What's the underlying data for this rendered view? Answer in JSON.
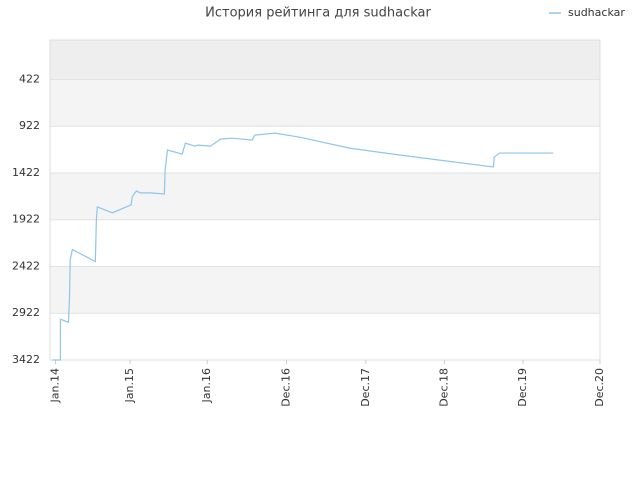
{
  "chart_data": {
    "type": "line",
    "title": "История рейтинга для sudhackar",
    "legend": "top-right",
    "grid": true,
    "xlim": [
      -0.07,
      7
    ],
    "xticks": [
      {
        "value": 0,
        "label": "Jan.14"
      },
      {
        "value": 0.96,
        "label": "Jan.15"
      },
      {
        "value": 1.95,
        "label": "Jan.16"
      },
      {
        "value": 2.97,
        "label": "Dec.16"
      },
      {
        "value": 3.99,
        "label": "Dec.17"
      },
      {
        "value": 5,
        "label": "Dec.18"
      },
      {
        "value": 6.01,
        "label": "Dec.19"
      },
      {
        "value": 7,
        "label": "Dec.20"
      }
    ],
    "ylim": [
      3422,
      0
    ],
    "yticks": [
      422,
      922,
      1422,
      1922,
      2422,
      2922,
      3422
    ],
    "x": [
      -0.04,
      0.064,
      0.064,
      0.167,
      0.18,
      0.19,
      0.218,
      0.513,
      0.526,
      0.538,
      0.73,
      0.974,
      0.987,
      1.04,
      1.09,
      1.22,
      1.4,
      1.41,
      1.44,
      1.63,
      1.67,
      1.79,
      1.83,
      1.99,
      2.05,
      2.12,
      2.27,
      2.53,
      2.56,
      2.82,
      3.14,
      3.78,
      4.42,
      5.63,
      5.64,
      5.71,
      6.4
    ],
    "series": [
      {
        "name": "sudhackar",
        "color": "#8ec5ec",
        "values": [
          3422,
          3422,
          2986,
          3018,
          2773,
          2347,
          2241,
          2369,
          1922,
          1784,
          1848,
          1763,
          1677,
          1614,
          1635,
          1635,
          1646,
          1390,
          1177,
          1220,
          1103,
          1135,
          1124,
          1135,
          1103,
          1060,
          1050,
          1071,
          1018,
          996,
          1039,
          1156,
          1230,
          1358,
          1252,
          1209,
          1209
        ]
      }
    ]
  }
}
